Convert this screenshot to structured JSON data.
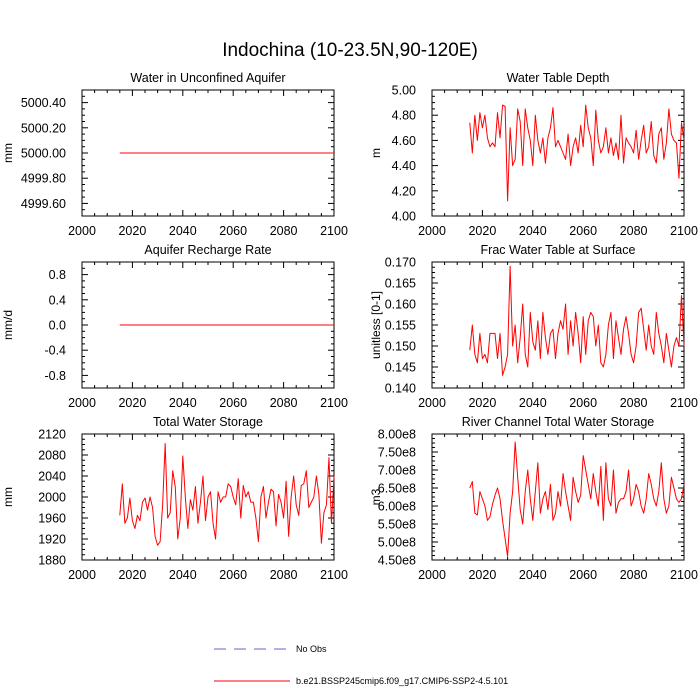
{
  "suptitle": "Indochina (10-23.5N,90-120E)",
  "series_color": "#ff0000",
  "obs_color": "#6666cc",
  "legend": {
    "obs_label": "No Obs",
    "model_label": "b.e21.BSSP245cmip6.f09_g17.CMIP6-SSP2-4.5.101"
  },
  "chart_data": [
    {
      "type": "line",
      "title": "Water in Unconfined Aquifer",
      "xlabel": "",
      "ylabel": "mm",
      "xlim": [
        2000,
        2100
      ],
      "xticks": [
        "2000",
        "2020",
        "2040",
        "2060",
        "2080",
        "2100"
      ],
      "ylim": [
        4999.5,
        5000.5
      ],
      "yticks": [
        "4999.60",
        "4999.80",
        "5000.00",
        "5000.20",
        "5000.40"
      ],
      "ytick_values": [
        4999.6,
        4999.8,
        5000.0,
        5000.2,
        5000.4
      ],
      "x_start": 2015,
      "values": [
        5000,
        5000,
        5000,
        5000,
        5000,
        5000,
        5000,
        5000,
        5000,
        5000,
        5000,
        5000,
        5000,
        5000,
        5000,
        5000,
        5000,
        5000,
        5000,
        5000,
        5000,
        5000,
        5000,
        5000,
        5000,
        5000,
        5000,
        5000,
        5000,
        5000,
        5000,
        5000,
        5000,
        5000,
        5000,
        5000,
        5000,
        5000,
        5000,
        5000,
        5000,
        5000,
        5000,
        5000,
        5000,
        5000,
        5000,
        5000,
        5000,
        5000,
        5000,
        5000,
        5000,
        5000,
        5000,
        5000,
        5000,
        5000,
        5000,
        5000,
        5000,
        5000,
        5000,
        5000,
        5000,
        5000,
        5000,
        5000,
        5000,
        5000,
        5000,
        5000,
        5000,
        5000,
        5000,
        5000,
        5000,
        5000,
        5000,
        5000,
        5000,
        5000,
        5000,
        5000,
        5000,
        5000
      ]
    },
    {
      "type": "line",
      "title": "Water Table Depth",
      "xlabel": "",
      "ylabel": "m",
      "xlim": [
        2000,
        2100
      ],
      "xticks": [
        "2000",
        "2020",
        "2040",
        "2060",
        "2080",
        "2100"
      ],
      "ylim": [
        4.0,
        5.0
      ],
      "yticks": [
        "4.00",
        "4.20",
        "4.40",
        "4.60",
        "4.80",
        "5.00"
      ],
      "ytick_values": [
        4.0,
        4.2,
        4.4,
        4.6,
        4.8,
        5.0
      ],
      "x_start": 2015,
      "values": [
        4.74,
        4.5,
        4.8,
        4.6,
        4.82,
        4.7,
        4.8,
        4.62,
        4.55,
        4.58,
        4.55,
        4.82,
        4.62,
        4.88,
        4.87,
        4.12,
        4.7,
        4.4,
        4.45,
        4.85,
        4.75,
        4.4,
        4.85,
        4.7,
        4.6,
        4.4,
        4.8,
        4.6,
        4.5,
        4.62,
        4.42,
        4.62,
        4.7,
        4.86,
        4.55,
        4.6,
        4.55,
        4.5,
        4.45,
        4.65,
        4.4,
        4.55,
        4.62,
        4.5,
        4.72,
        4.55,
        4.88,
        4.7,
        4.62,
        4.4,
        4.84,
        4.6,
        4.5,
        4.55,
        4.7,
        4.5,
        4.62,
        4.48,
        4.58,
        4.45,
        4.8,
        4.42,
        4.62,
        4.58,
        4.55,
        4.5,
        4.68,
        4.45,
        4.6,
        4.72,
        4.5,
        4.55,
        4.75,
        4.48,
        4.42,
        4.65,
        4.7,
        4.45,
        4.58,
        4.85,
        4.65,
        4.6,
        4.58,
        4.3,
        4.74,
        4.6
      ]
    },
    {
      "type": "line",
      "title": "Aquifer Recharge Rate",
      "xlabel": "",
      "ylabel": "mm/d",
      "xlim": [
        2000,
        2100
      ],
      "xticks": [
        "2000",
        "2020",
        "2040",
        "2060",
        "2080",
        "2100"
      ],
      "ylim": [
        -1.0,
        1.0
      ],
      "yticks": [
        "-0.8",
        "-0.4",
        "0.0",
        "0.4",
        "0.8"
      ],
      "ytick_values": [
        -0.8,
        -0.4,
        0.0,
        0.4,
        0.8
      ],
      "x_start": 2015,
      "values": [
        0,
        0,
        0,
        0,
        0,
        0,
        0,
        0,
        0,
        0,
        0,
        0,
        0,
        0,
        0,
        0,
        0,
        0,
        0,
        0,
        0,
        0,
        0,
        0,
        0,
        0,
        0,
        0,
        0,
        0,
        0,
        0,
        0,
        0,
        0,
        0,
        0,
        0,
        0,
        0,
        0,
        0,
        0,
        0,
        0,
        0,
        0,
        0,
        0,
        0,
        0,
        0,
        0,
        0,
        0,
        0,
        0,
        0,
        0,
        0,
        0,
        0,
        0,
        0,
        0,
        0,
        0,
        0,
        0,
        0,
        0,
        0,
        0,
        0,
        0,
        0,
        0,
        0,
        0,
        0,
        0,
        0,
        0,
        0,
        0,
        0
      ]
    },
    {
      "type": "line",
      "title": "Frac Water Table at Surface",
      "xlabel": "",
      "ylabel": "unitless [0-1]",
      "xlim": [
        2000,
        2100
      ],
      "xticks": [
        "2000",
        "2020",
        "2040",
        "2060",
        "2080",
        "2100"
      ],
      "ylim": [
        0.14,
        0.17
      ],
      "yticks": [
        "0.140",
        "0.145",
        "0.150",
        "0.155",
        "0.160",
        "0.165",
        "0.170"
      ],
      "ytick_values": [
        0.14,
        0.145,
        0.15,
        0.155,
        0.16,
        0.165,
        0.17
      ],
      "x_start": 2015,
      "values": [
        0.149,
        0.155,
        0.148,
        0.146,
        0.153,
        0.147,
        0.148,
        0.146,
        0.153,
        0.153,
        0.153,
        0.147,
        0.153,
        0.143,
        0.145,
        0.148,
        0.169,
        0.15,
        0.155,
        0.146,
        0.152,
        0.16,
        0.148,
        0.145,
        0.158,
        0.151,
        0.149,
        0.156,
        0.147,
        0.158,
        0.152,
        0.148,
        0.153,
        0.154,
        0.147,
        0.153,
        0.156,
        0.154,
        0.16,
        0.148,
        0.156,
        0.15,
        0.158,
        0.153,
        0.146,
        0.157,
        0.148,
        0.156,
        0.158,
        0.157,
        0.15,
        0.155,
        0.146,
        0.145,
        0.148,
        0.155,
        0.158,
        0.147,
        0.156,
        0.152,
        0.148,
        0.154,
        0.157,
        0.153,
        0.148,
        0.146,
        0.15,
        0.158,
        0.159,
        0.154,
        0.149,
        0.155,
        0.15,
        0.148,
        0.158,
        0.153,
        0.15,
        0.146,
        0.153,
        0.149,
        0.145,
        0.15,
        0.152,
        0.15,
        0.162,
        0.15
      ]
    },
    {
      "type": "line",
      "title": "Total Water Storage",
      "xlabel": "",
      "ylabel": "mm",
      "xlim": [
        2000,
        2100
      ],
      "xticks": [
        "2000",
        "2020",
        "2040",
        "2060",
        "2080",
        "2100"
      ],
      "ylim": [
        1880,
        2120
      ],
      "yticks": [
        "1880",
        "1920",
        "1960",
        "2000",
        "2040",
        "2080",
        "2120"
      ],
      "ytick_values": [
        1880,
        1920,
        1960,
        2000,
        2040,
        2080,
        2120
      ],
      "x_start": 2015,
      "values": [
        1965,
        2025,
        1950,
        1960,
        1998,
        1955,
        1940,
        1965,
        1955,
        1990,
        1998,
        1975,
        2000,
        1980,
        1925,
        1908,
        1915,
        1985,
        2102,
        1960,
        1970,
        2050,
        2020,
        1920,
        1960,
        2078,
        2000,
        1940,
        1995,
        1975,
        2020,
        1950,
        1990,
        2040,
        1955,
        2000,
        2010,
        1950,
        1920,
        2010,
        1990,
        2000,
        2000,
        2025,
        2020,
        2000,
        1985,
        2035,
        1960,
        2022,
        2000,
        2010,
        1990,
        1990,
        1960,
        1915,
        2000,
        2020,
        1960,
        1990,
        2015,
        2010,
        1945,
        2005,
        1990,
        1960,
        2030,
        1925,
        2000,
        2040,
        1985,
        1965,
        2022,
        2025,
        2050,
        1980,
        1990,
        2000,
        2040,
        2005,
        1912,
        1970,
        1985,
        2075,
        1950,
        2040
      ]
    },
    {
      "type": "line",
      "title": "River Channel Total Water Storage",
      "xlabel": "",
      "ylabel": "m3",
      "xlim": [
        2000,
        2100
      ],
      "xticks": [
        "2000",
        "2020",
        "2040",
        "2060",
        "2080",
        "2100"
      ],
      "ylim": [
        450000000,
        800000000
      ],
      "yticks": [
        "4.50e8",
        "5.00e8",
        "5.50e8",
        "6.00e8",
        "6.50e8",
        "7.00e8",
        "7.50e8",
        "8.00e8"
      ],
      "ytick_values": [
        450000000,
        500000000,
        550000000,
        600000000,
        650000000,
        700000000,
        750000000,
        800000000
      ],
      "x_start": 2015,
      "values": [
        650000000,
        668000000,
        580000000,
        575000000,
        640000000,
        620000000,
        600000000,
        560000000,
        570000000,
        605000000,
        630000000,
        650000000,
        620000000,
        560000000,
        510000000,
        460000000,
        580000000,
        640000000,
        778000000,
        680000000,
        590000000,
        550000000,
        640000000,
        700000000,
        620000000,
        560000000,
        640000000,
        720000000,
        580000000,
        620000000,
        640000000,
        590000000,
        660000000,
        560000000,
        580000000,
        640000000,
        600000000,
        690000000,
        640000000,
        600000000,
        560000000,
        680000000,
        640000000,
        610000000,
        630000000,
        740000000,
        700000000,
        660000000,
        620000000,
        690000000,
        640000000,
        600000000,
        710000000,
        560000000,
        720000000,
        620000000,
        600000000,
        700000000,
        580000000,
        610000000,
        620000000,
        620000000,
        640000000,
        700000000,
        600000000,
        620000000,
        660000000,
        640000000,
        600000000,
        580000000,
        620000000,
        690000000,
        660000000,
        620000000,
        600000000,
        640000000,
        720000000,
        620000000,
        580000000,
        600000000,
        680000000,
        650000000,
        620000000,
        610000000,
        620000000,
        660000000
      ]
    }
  ]
}
